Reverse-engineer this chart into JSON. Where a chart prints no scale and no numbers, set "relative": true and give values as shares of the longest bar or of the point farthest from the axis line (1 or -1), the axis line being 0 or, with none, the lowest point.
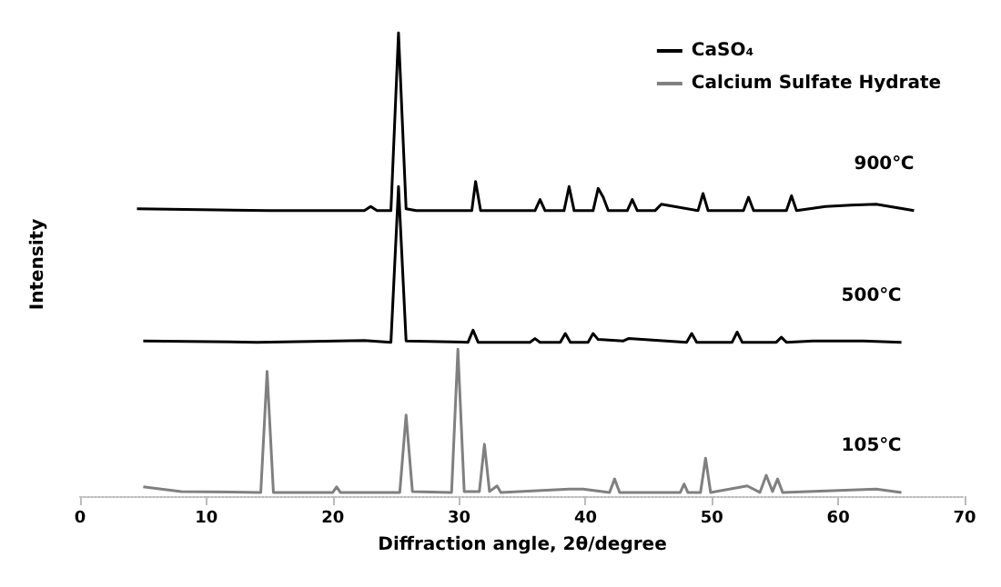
{
  "chart_data": {
    "type": "line",
    "relative": true,
    "xlabel": "Diffraction angle, 2θ/degree",
    "ylabel": "Intensity",
    "xlim": [
      0,
      70
    ],
    "xticks": [
      0,
      10,
      20,
      30,
      40,
      50,
      60,
      70
    ],
    "tick_labels": "x",
    "grid": false,
    "legend": "top right",
    "marker": "none",
    "line_style": "solid",
    "annotations": [
      "900℃",
      "500℃",
      "105℃"
    ],
    "series": [
      {
        "name": "CaSO₄",
        "color": "#000000",
        "x": [
          4.5,
          15,
          22.5,
          23,
          23.5,
          24.6,
          25.2,
          25.8,
          26.6,
          27.5,
          31,
          31.3,
          31.7,
          36,
          36.4,
          36.8,
          38.3,
          38.7,
          39.1,
          40.6,
          41,
          41.4,
          41.8,
          43.3,
          43.7,
          44.1,
          45.5,
          46,
          48.9,
          49.3,
          49.7,
          52.5,
          52.9,
          53.3,
          55.9,
          56.3,
          56.7,
          59,
          61,
          63,
          66
        ],
        "values": [
          0.62,
          0.616,
          0.616,
          0.625,
          0.616,
          0.616,
          1.0,
          0.62,
          0.616,
          0.616,
          0.616,
          0.679,
          0.616,
          0.616,
          0.64,
          0.616,
          0.616,
          0.668,
          0.616,
          0.616,
          0.664,
          0.645,
          0.616,
          0.616,
          0.64,
          0.616,
          0.616,
          0.63,
          0.616,
          0.653,
          0.616,
          0.616,
          0.645,
          0.616,
          0.616,
          0.648,
          0.616,
          0.625,
          0.628,
          0.63,
          0.616
        ]
      },
      {
        "color": "#000000",
        "x": [
          5,
          14,
          22.5,
          24.6,
          25.2,
          25.8,
          30.7,
          31.1,
          31.5,
          35.6,
          36,
          36.4,
          38,
          38.4,
          38.8,
          40.2,
          40.6,
          41,
          43,
          43.4,
          48,
          48.4,
          48.8,
          51.6,
          52,
          52.4,
          55.1,
          55.5,
          55.9,
          58,
          62,
          65
        ],
        "values": [
          0.335,
          0.332,
          0.336,
          0.332,
          0.668,
          0.335,
          0.332,
          0.358,
          0.332,
          0.332,
          0.34,
          0.332,
          0.332,
          0.351,
          0.332,
          0.332,
          0.351,
          0.338,
          0.335,
          0.34,
          0.332,
          0.351,
          0.332,
          0.332,
          0.354,
          0.332,
          0.332,
          0.343,
          0.332,
          0.335,
          0.335,
          0.332
        ]
      },
      {
        "name": "Calcium Sulfate Hydrate",
        "color": "#808080",
        "x": [
          5,
          8,
          14.3,
          14.8,
          15.3,
          20,
          20.3,
          20.6,
          25.3,
          25.8,
          26.3,
          29.4,
          29.9,
          30.4,
          31.6,
          32,
          32.4,
          33,
          33.3,
          38.7,
          39.8,
          41.9,
          42.3,
          42.7,
          47.5,
          47.8,
          48.1,
          49.1,
          49.5,
          49.9,
          52.8,
          53.8,
          54.3,
          54.8,
          55.2,
          55.6,
          63,
          65
        ],
        "values": [
          0.02,
          0.01,
          0.008,
          0.269,
          0.008,
          0.008,
          0.02,
          0.008,
          0.008,
          0.175,
          0.01,
          0.008,
          0.317,
          0.01,
          0.01,
          0.112,
          0.01,
          0.022,
          0.008,
          0.015,
          0.015,
          0.008,
          0.037,
          0.008,
          0.008,
          0.026,
          0.008,
          0.008,
          0.082,
          0.008,
          0.022,
          0.008,
          0.045,
          0.01,
          0.037,
          0.008,
          0.015,
          0.008
        ]
      }
    ]
  }
}
